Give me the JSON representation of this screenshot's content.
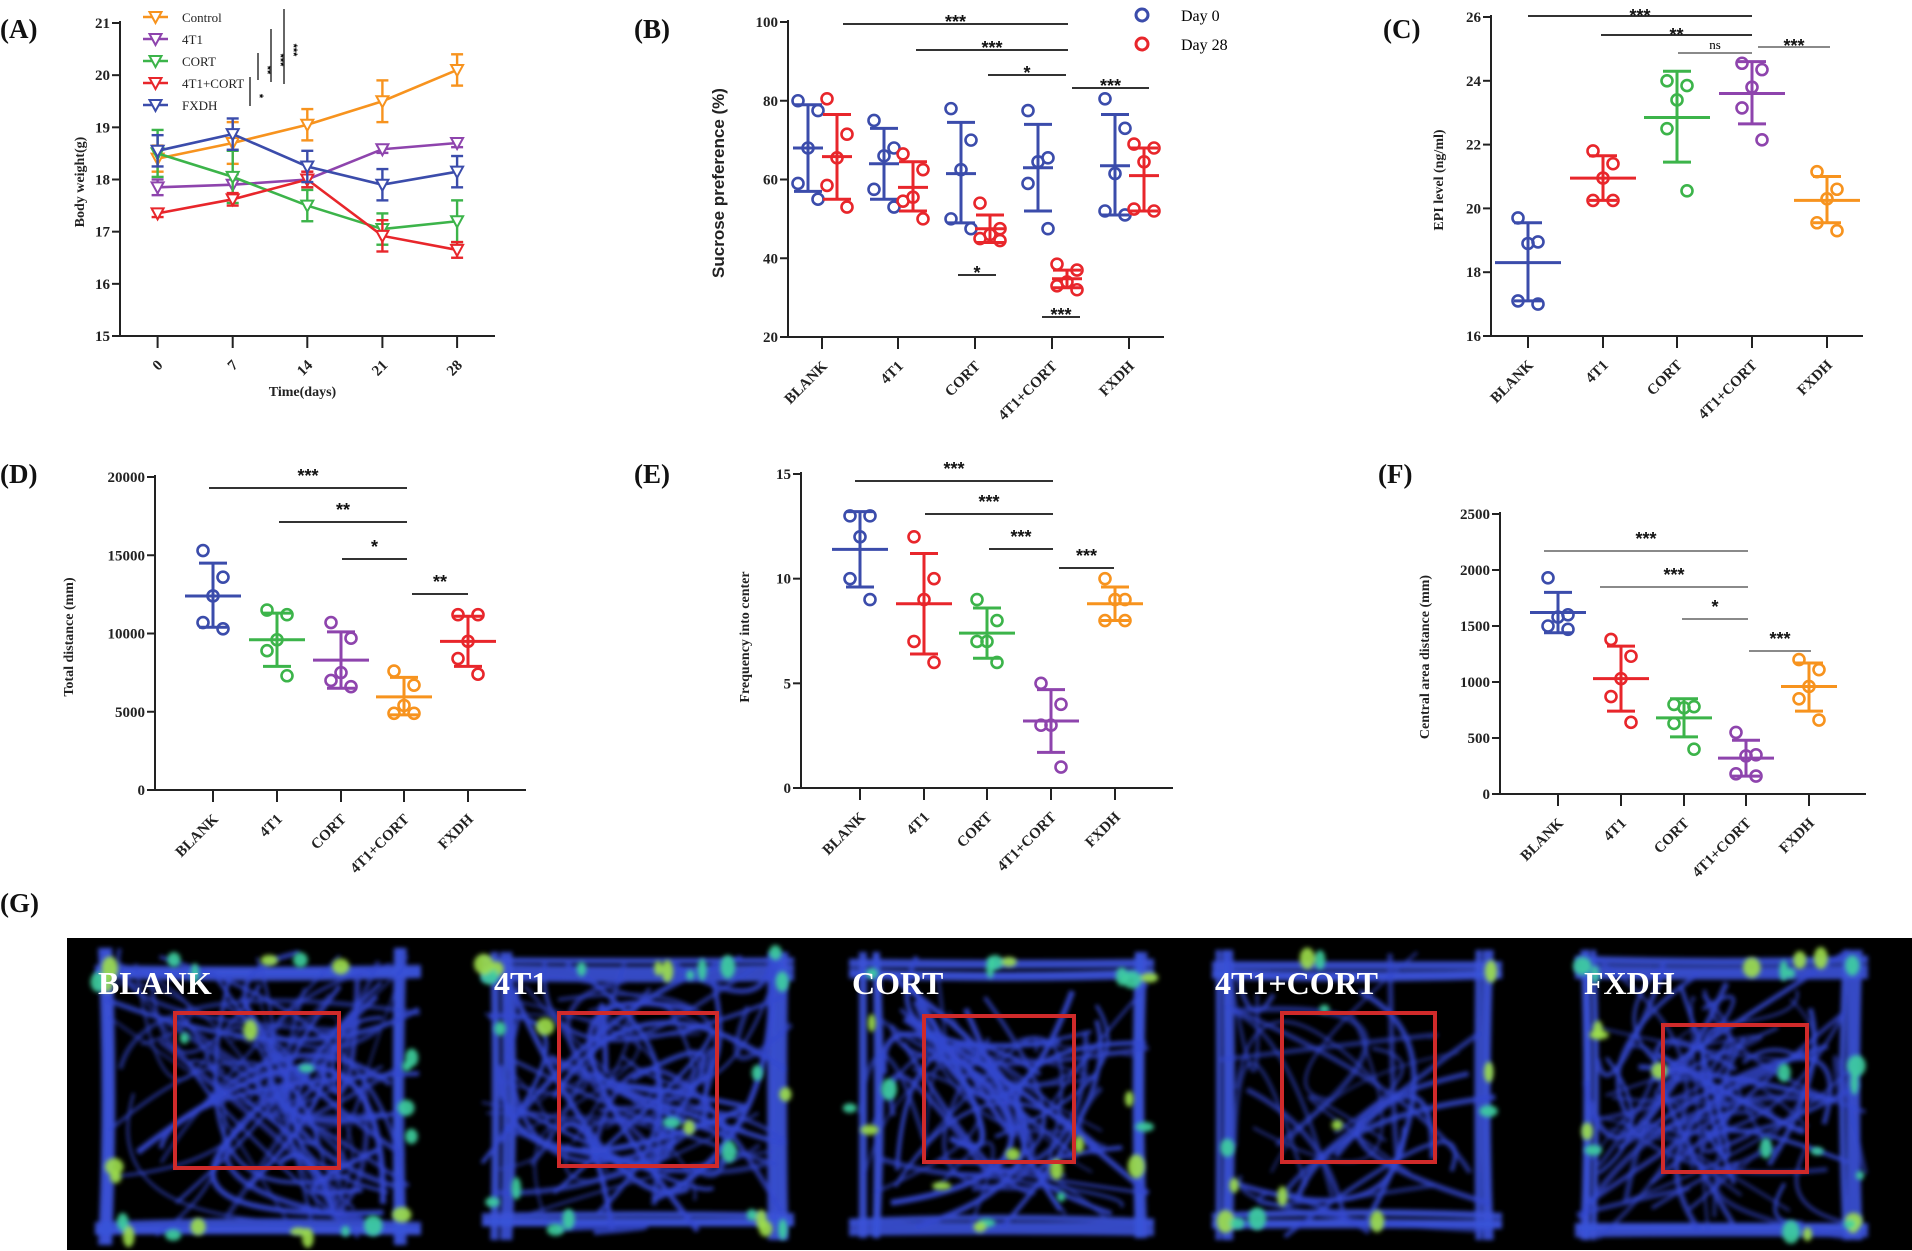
{
  "panels": [
    "(A)",
    "(B)",
    "(C)",
    "(D)",
    "(E)",
    "(F)",
    "(G)"
  ],
  "colors": {
    "blue": "#3b4cab",
    "red": "#e8262b",
    "green": "#3cb44a",
    "purple": "#8e44ad",
    "orange": "#f7931e",
    "gray": "#8a8a8a"
  },
  "chart_data": [
    {
      "id": "A",
      "type": "line",
      "xlabel": "Time(days)",
      "ylabel": "Body weight(g)",
      "x": [
        0,
        7,
        14,
        21,
        28
      ],
      "xticks": [
        "0",
        "7",
        "14",
        "21",
        "28"
      ],
      "ylim": [
        15,
        21
      ],
      "yticks": [
        "15",
        "16",
        "17",
        "18",
        "19",
        "20",
        "21"
      ],
      "legend": "top-left",
      "marker": "open-down-triangle",
      "series": [
        {
          "name": "Control",
          "color": "#f7931e",
          "values": [
            18.4,
            18.7,
            19.05,
            19.5,
            20.1
          ],
          "errors": [
            0.25,
            0.4,
            0.3,
            0.4,
            0.3
          ]
        },
        {
          "name": "4T1",
          "color": "#8e44ad",
          "values": [
            17.85,
            17.9,
            18.0,
            18.58,
            18.7
          ],
          "errors": [
            0.15,
            0.2,
            0.15,
            0.07,
            0.08
          ]
        },
        {
          "name": "CORT",
          "color": "#3cb44a",
          "values": [
            18.5,
            18.05,
            17.5,
            17.05,
            17.2
          ],
          "errors": [
            0.45,
            0.5,
            0.3,
            0.3,
            0.4
          ]
        },
        {
          "name": "4T1+CORT",
          "color": "#e8262b",
          "values": [
            17.35,
            17.62,
            18.0,
            16.92,
            16.65
          ],
          "errors": [
            0.07,
            0.12,
            0.15,
            0.3,
            0.15
          ]
        },
        {
          "name": "FXDH",
          "color": "#3b4cab",
          "values": [
            18.55,
            18.87,
            18.25,
            17.9,
            18.15
          ],
          "errors": [
            0.3,
            0.3,
            0.3,
            0.3,
            0.3
          ]
        }
      ],
      "significance": [
        {
          "label": "*"
        },
        {
          "label": "**"
        },
        {
          "label": "***"
        },
        {
          "label": "***"
        }
      ]
    },
    {
      "id": "B",
      "type": "scatter",
      "ylabel": "Sucrose preference (%)",
      "categories": [
        "BLANK",
        "4T1",
        "CORT",
        "4T1+CORT",
        "FXDH"
      ],
      "ylim": [
        20,
        100
      ],
      "yticks": [
        "20",
        "40",
        "60",
        "80",
        "100"
      ],
      "legend": "top-right",
      "series": [
        {
          "name": "Day 0",
          "color": "#3b4cab",
          "groups": [
            {
              "points": [
                80,
                77.5,
                68,
                59,
                55
              ],
              "mean": 68,
              "err": [
                57,
                79
              ]
            },
            {
              "points": [
                75,
                68,
                66,
                57.5,
                53
              ],
              "mean": 64,
              "err": [
                55,
                73
              ]
            },
            {
              "points": [
                78,
                70,
                62.5,
                50,
                47.5
              ],
              "mean": 61.5,
              "err": [
                49,
                74.5
              ]
            },
            {
              "points": [
                77.5,
                65.5,
                64.5,
                59,
                47.5
              ],
              "mean": 63,
              "err": [
                52,
                74
              ]
            },
            {
              "points": [
                80.5,
                73,
                61.5,
                52,
                51
              ],
              "mean": 63.5,
              "err": [
                51,
                76.5
              ]
            }
          ]
        },
        {
          "name": "Day 28",
          "color": "#e8262b",
          "groups": [
            {
              "points": [
                80.5,
                71.5,
                65.5,
                58.5,
                53
              ],
              "mean": 65.8,
              "err": [
                55,
                76.5
              ]
            },
            {
              "points": [
                66.5,
                62.5,
                55.5,
                54.5,
                50
              ],
              "mean": 58,
              "err": [
                52,
                64.5
              ]
            },
            {
              "points": [
                54,
                47.5,
                46,
                45,
                44.5
              ],
              "mean": 47.5,
              "err": [
                44,
                51
              ]
            },
            {
              "points": [
                38.5,
                37,
                34,
                33,
                32
              ],
              "mean": 34.8,
              "err": [
                32.5,
                37
              ]
            },
            {
              "points": [
                69,
                68,
                64.5,
                52.5,
                52
              ],
              "mean": 61,
              "err": [
                52,
                68
              ]
            }
          ]
        }
      ],
      "significance": [
        {
          "label": "***"
        },
        {
          "label": "***"
        },
        {
          "label": "*"
        },
        {
          "label": "***"
        },
        {
          "label": "*"
        },
        {
          "label": "***"
        }
      ]
    },
    {
      "id": "C",
      "type": "scatter",
      "ylabel": "EPI level (ng/ml)",
      "categories": [
        "BLANK",
        "4T1",
        "CORT",
        "4T1+CORT",
        "FXDH"
      ],
      "ylim": [
        16,
        26
      ],
      "yticks": [
        "16",
        "18",
        "20",
        "22",
        "24",
        "26"
      ],
      "groups": [
        {
          "color": "#3b4cab",
          "points": [
            19.7,
            18.95,
            18.9,
            17.1,
            17.0
          ],
          "mean": 18.3,
          "err": [
            17.1,
            19.55
          ]
        },
        {
          "color": "#e8262b",
          "points": [
            21.8,
            21.4,
            20.95,
            20.25,
            20.25
          ],
          "mean": 20.95,
          "err": [
            20.25,
            21.65
          ]
        },
        {
          "color": "#3cb44a",
          "points": [
            24.0,
            23.85,
            23.4,
            22.5,
            20.55
          ],
          "mean": 22.85,
          "err": [
            21.45,
            24.3
          ]
        },
        {
          "color": "#8e44ad",
          "points": [
            24.55,
            24.35,
            23.8,
            23.15,
            22.15
          ],
          "mean": 23.6,
          "err": [
            22.65,
            24.6
          ]
        },
        {
          "color": "#f7931e",
          "points": [
            21.15,
            20.6,
            20.3,
            19.55,
            19.3
          ],
          "mean": 20.25,
          "err": [
            19.55,
            21.0
          ]
        }
      ],
      "significance": [
        {
          "label": "***"
        },
        {
          "label": "**"
        },
        {
          "label": "ns"
        },
        {
          "label": "***"
        }
      ]
    },
    {
      "id": "D",
      "type": "scatter",
      "ylabel": "Total distance (mm)",
      "categories": [
        "BLANK",
        "4T1",
        "CORT",
        "4T1+CORT",
        "FXDH"
      ],
      "ylim": [
        0,
        20000
      ],
      "yticks": [
        "0",
        "5000",
        "10000",
        "15000",
        "20000"
      ],
      "groups": [
        {
          "color": "#3b4cab",
          "points": [
            15300,
            13600,
            12400,
            10700,
            10300
          ],
          "mean": 12400,
          "err": [
            10400,
            14500
          ]
        },
        {
          "color": "#3cb44a",
          "points": [
            11500,
            11200,
            9600,
            8900,
            7300
          ],
          "mean": 9600,
          "err": [
            7900,
            11300
          ]
        },
        {
          "color": "#8e44ad",
          "points": [
            10700,
            9700,
            7500,
            7000,
            6600
          ],
          "mean": 8300,
          "err": [
            6500,
            10100
          ]
        },
        {
          "color": "#f7931e",
          "points": [
            7600,
            6700,
            5400,
            4900,
            4900
          ],
          "mean": 5950,
          "err": [
            4800,
            7200
          ]
        },
        {
          "color": "#e8262b",
          "points": [
            11200,
            11200,
            9500,
            8400,
            7400
          ],
          "mean": 9500,
          "err": [
            7900,
            11100
          ]
        }
      ],
      "significance": [
        {
          "label": "***"
        },
        {
          "label": "**"
        },
        {
          "label": "*"
        },
        {
          "label": "**"
        }
      ]
    },
    {
      "id": "E",
      "type": "scatter",
      "ylabel": "Frequency into center",
      "categories": [
        "BLANK",
        "4T1",
        "CORT",
        "4T1+CORT",
        "FXDH"
      ],
      "ylim": [
        0,
        15
      ],
      "yticks": [
        "0",
        "5",
        "10",
        "15"
      ],
      "groups": [
        {
          "color": "#3b4cab",
          "points": [
            13,
            13,
            12,
            10,
            9
          ],
          "mean": 11.4,
          "err": [
            9.6,
            13.2
          ]
        },
        {
          "color": "#e8262b",
          "points": [
            12,
            10,
            9,
            7,
            6
          ],
          "mean": 8.8,
          "err": [
            6.4,
            11.2
          ]
        },
        {
          "color": "#3cb44a",
          "points": [
            9,
            8,
            7,
            7,
            6
          ],
          "mean": 7.4,
          "err": [
            6.2,
            8.6
          ]
        },
        {
          "color": "#8e44ad",
          "points": [
            5,
            4,
            3,
            3,
            1
          ],
          "mean": 3.2,
          "err": [
            1.7,
            4.7
          ]
        },
        {
          "color": "#f7931e",
          "points": [
            10,
            9,
            9,
            8,
            8
          ],
          "mean": 8.8,
          "err": [
            8.0,
            9.6
          ]
        }
      ],
      "significance": [
        {
          "label": "***"
        },
        {
          "label": "***"
        },
        {
          "label": "***"
        },
        {
          "label": "***"
        }
      ]
    },
    {
      "id": "F",
      "type": "scatter",
      "ylabel": "Central area distance (mm)",
      "categories": [
        "BLANK",
        "4T1",
        "CORT",
        "4T1+CORT",
        "FXDH"
      ],
      "ylim": [
        0,
        2500
      ],
      "yticks": [
        "0",
        "500",
        "1000",
        "1500",
        "2000",
        "2500"
      ],
      "groups": [
        {
          "color": "#3b4cab",
          "points": [
            1930,
            1600,
            1580,
            1500,
            1470
          ],
          "mean": 1620,
          "err": [
            1440,
            1800
          ]
        },
        {
          "color": "#e8262b",
          "points": [
            1380,
            1230,
            1030,
            870,
            640
          ],
          "mean": 1030,
          "err": [
            740,
            1320
          ]
        },
        {
          "color": "#3cb44a",
          "points": [
            800,
            780,
            770,
            630,
            400
          ],
          "mean": 680,
          "err": [
            510,
            850
          ]
        },
        {
          "color": "#8e44ad",
          "points": [
            550,
            350,
            340,
            180,
            160
          ],
          "mean": 320,
          "err": [
            160,
            480
          ]
        },
        {
          "color": "#f7931e",
          "points": [
            1200,
            1110,
            960,
            850,
            660
          ],
          "mean": 960,
          "err": [
            740,
            1170
          ]
        }
      ],
      "significance": [
        {
          "label": "***"
        },
        {
          "label": "***"
        },
        {
          "label": "*"
        },
        {
          "label": "***"
        }
      ]
    }
  ],
  "heatmaps": {
    "labels": [
      "BLANK",
      "4T1",
      "CORT",
      "4T1+CORT",
      "FXDH"
    ],
    "zone_color": "#d02a2a"
  }
}
